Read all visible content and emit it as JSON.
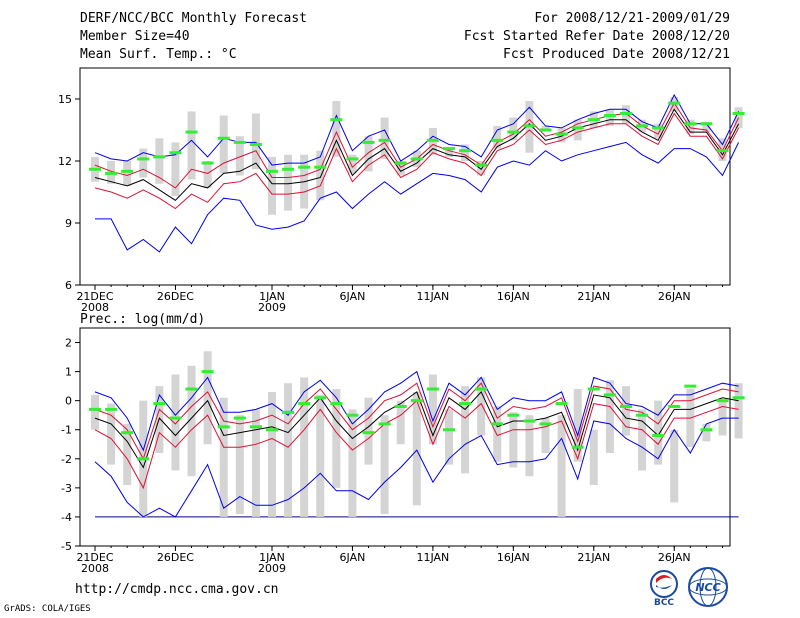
{
  "header": {
    "title": "DERF/NCC/BCC Monthly Forecast",
    "member": "Member Size=40",
    "variable": "Mean Surf. Temp.: °C",
    "period": "For 2008/12/21-2009/01/29",
    "started": "Fcst Started Refer Date 2008/12/20",
    "produced": "Fcst Produced Date 2008/12/21"
  },
  "footer": {
    "url": "http://cmdp.ncc.cma.gov.cn",
    "credit": "GrADS: COLA/IGES",
    "logo_bcc": "BCC",
    "logo_ncc": "NCC"
  },
  "colors": {
    "envelope": "#0000ee",
    "spread": "#dd1133",
    "mean": "#000000",
    "bar": "#d4d4d4",
    "median": "#33ee33",
    "floor": "#000088"
  },
  "chart_data": [
    {
      "type": "line",
      "title": "Mean Surf. Temp.: °C",
      "xlabel": "",
      "ylabel": "",
      "ylim": [
        6,
        16.5
      ],
      "yticks": [
        6,
        9,
        12,
        15
      ],
      "days": 40,
      "xticks": [
        {
          "day": 0,
          "label": "21DEC",
          "sub": "2008"
        },
        {
          "day": 5,
          "label": "26DEC",
          "sub": ""
        },
        {
          "day": 11,
          "label": "1JAN",
          "sub": "2009"
        },
        {
          "day": 16,
          "label": "6JAN",
          "sub": ""
        },
        {
          "day": 21,
          "label": "11JAN",
          "sub": ""
        },
        {
          "day": 26,
          "label": "16JAN",
          "sub": ""
        },
        {
          "day": 31,
          "label": "21JAN",
          "sub": ""
        },
        {
          "day": 36,
          "label": "26JAN",
          "sub": ""
        }
      ],
      "bar_low": [
        11.0,
        10.9,
        10.8,
        11.2,
        10.9,
        10.3,
        11.1,
        10.7,
        11.4,
        11.3,
        11.6,
        9.4,
        9.6,
        9.7,
        10.1,
        12.2,
        11.4,
        11.5,
        12.1,
        11.3,
        11.7,
        12.3,
        12.2,
        12.0,
        11.3,
        12.6,
        13.0,
        12.4,
        13.5,
        12.9,
        13.0,
        13.6,
        13.7,
        13.8,
        13.4,
        13.1,
        14.4,
        13.3,
        13.4,
        12.0,
        13.6
      ],
      "bar_high": [
        12.2,
        12.0,
        12.0,
        12.6,
        13.1,
        12.9,
        14.4,
        12.0,
        14.2,
        13.2,
        14.3,
        12.2,
        12.3,
        12.3,
        12.5,
        14.9,
        12.3,
        13.2,
        14.1,
        12.0,
        12.5,
        13.6,
        12.6,
        12.8,
        12.0,
        13.7,
        14.1,
        14.9,
        13.7,
        13.6,
        14.0,
        14.4,
        14.5,
        14.7,
        14.0,
        13.8,
        15.1,
        14.0,
        13.9,
        13.1,
        14.6
      ],
      "median": [
        11.6,
        11.4,
        11.5,
        12.1,
        12.2,
        12.4,
        13.4,
        11.9,
        13.1,
        12.9,
        12.8,
        11.5,
        11.6,
        11.7,
        11.7,
        14.0,
        12.1,
        12.9,
        13.0,
        11.9,
        12.1,
        13.0,
        12.6,
        12.5,
        11.8,
        13.0,
        13.4,
        13.7,
        13.5,
        13.3,
        13.6,
        14.0,
        14.2,
        14.3,
        13.7,
        13.6,
        14.8,
        13.8,
        13.8,
        12.5,
        14.3
      ],
      "series": [
        {
          "name": "max",
          "role": "envelope",
          "values": [
            12.4,
            12.1,
            12.0,
            12.4,
            12.2,
            12.3,
            13.0,
            12.2,
            13.1,
            12.9,
            12.9,
            11.8,
            11.9,
            11.9,
            12.2,
            14.2,
            12.5,
            13.2,
            13.5,
            12.0,
            12.5,
            13.2,
            12.8,
            12.7,
            12.2,
            13.5,
            13.8,
            14.6,
            13.7,
            13.6,
            14.0,
            14.3,
            14.5,
            14.5,
            13.9,
            13.6,
            15.2,
            13.8,
            13.8,
            12.8,
            14.4
          ]
        },
        {
          "name": "upper",
          "role": "spread",
          "values": [
            11.8,
            11.5,
            11.3,
            11.6,
            11.2,
            10.7,
            11.6,
            11.4,
            11.9,
            12.2,
            12.5,
            11.2,
            11.2,
            11.3,
            11.6,
            13.4,
            11.7,
            12.4,
            12.9,
            11.7,
            12.1,
            12.8,
            12.5,
            12.3,
            11.8,
            12.9,
            13.3,
            14.0,
            13.2,
            13.4,
            13.8,
            14.0,
            14.2,
            14.3,
            13.7,
            13.3,
            14.8,
            13.6,
            13.5,
            12.5,
            14.1
          ]
        },
        {
          "name": "mean",
          "role": "mean",
          "values": [
            11.2,
            11.0,
            10.8,
            11.1,
            10.6,
            10.1,
            10.9,
            10.7,
            11.4,
            11.5,
            11.9,
            10.9,
            10.9,
            11.0,
            11.2,
            13.0,
            11.3,
            12.1,
            12.6,
            11.5,
            11.9,
            12.6,
            12.3,
            12.2,
            11.6,
            12.7,
            13.1,
            13.8,
            13.0,
            13.2,
            13.6,
            13.8,
            14.0,
            14.0,
            13.4,
            13.0,
            14.5,
            13.4,
            13.4,
            12.3,
            13.8
          ]
        },
        {
          "name": "lower",
          "role": "spread",
          "values": [
            10.7,
            10.5,
            10.2,
            10.6,
            10.2,
            9.7,
            10.4,
            10.0,
            10.9,
            11.0,
            11.4,
            10.4,
            10.4,
            10.5,
            10.8,
            12.6,
            11.0,
            11.8,
            12.3,
            11.2,
            11.6,
            12.4,
            12.1,
            11.9,
            11.3,
            12.5,
            12.8,
            13.5,
            12.8,
            13.0,
            13.4,
            13.6,
            13.8,
            13.8,
            13.2,
            12.8,
            14.3,
            13.2,
            13.2,
            12.1,
            13.6
          ]
        },
        {
          "name": "min",
          "role": "envelope",
          "values": [
            9.2,
            9.2,
            7.7,
            8.2,
            7.6,
            8.8,
            8.0,
            9.4,
            10.2,
            10.1,
            8.9,
            8.7,
            8.8,
            9.1,
            10.2,
            10.5,
            9.7,
            10.4,
            11.0,
            10.4,
            10.9,
            11.4,
            11.3,
            11.1,
            10.5,
            11.7,
            12.0,
            11.8,
            12.5,
            12.0,
            12.3,
            12.5,
            12.7,
            12.9,
            12.3,
            11.9,
            12.6,
            12.6,
            12.2,
            11.3,
            12.9
          ]
        }
      ]
    },
    {
      "type": "line",
      "title": "Prec.: log(mm/d)",
      "xlabel": "",
      "ylabel": "",
      "ylim": [
        -5,
        2.5
      ],
      "yticks": [
        -5,
        -4,
        -3,
        -2,
        -1,
        0,
        1,
        2
      ],
      "days": 40,
      "xticks": [
        {
          "day": 0,
          "label": "21DEC",
          "sub": "2008"
        },
        {
          "day": 5,
          "label": "26DEC",
          "sub": ""
        },
        {
          "day": 11,
          "label": "1JAN",
          "sub": "2009"
        },
        {
          "day": 16,
          "label": "6JAN",
          "sub": ""
        },
        {
          "day": 21,
          "label": "11JAN",
          "sub": ""
        },
        {
          "day": 26,
          "label": "16JAN",
          "sub": ""
        },
        {
          "day": 31,
          "label": "21JAN",
          "sub": ""
        },
        {
          "day": 36,
          "label": "26JAN",
          "sub": ""
        }
      ],
      "floor_value": -4,
      "bar_low": [
        -1.0,
        -2.2,
        -2.9,
        -4.0,
        -1.8,
        -2.4,
        -2.6,
        -1.5,
        -4.0,
        -3.9,
        -4.0,
        -4.0,
        -4.0,
        -4.0,
        -4.0,
        -3.0,
        -4.0,
        -2.2,
        -3.9,
        -1.5,
        -3.6,
        -1.5,
        -2.2,
        -2.5,
        -1.2,
        -2.1,
        -2.3,
        -2.6,
        -1.8,
        -4.0,
        -2.1,
        -2.9,
        -1.8,
        -1.2,
        -2.4,
        -2.2,
        -3.5,
        -1.6,
        -1.4,
        -1.2,
        -1.3
      ],
      "bar_high": [
        0.2,
        -0.1,
        -0.8,
        0.0,
        0.5,
        0.9,
        1.2,
        1.7,
        0.1,
        -0.5,
        -0.3,
        0.3,
        0.6,
        0.8,
        0.2,
        0.4,
        -0.3,
        0.1,
        -0.5,
        0.0,
        0.3,
        0.9,
        -0.3,
        0.5,
        0.8,
        -0.2,
        -0.4,
        -0.5,
        -0.6,
        -0.5,
        0.4,
        -1.0,
        0.7,
        0.5,
        -0.3,
        0.0,
        -1.0,
        0.4,
        -0.8,
        0.0,
        0.6
      ],
      "median": [
        -0.3,
        -0.3,
        -1.1,
        -2.0,
        -0.1,
        -0.6,
        0.4,
        1.0,
        -0.9,
        -0.6,
        -0.9,
        -1.0,
        -0.4,
        -0.1,
        0.1,
        -0.1,
        -0.5,
        -1.1,
        -0.8,
        -0.2,
        0.0,
        0.4,
        -1.0,
        -0.1,
        0.4,
        -0.8,
        -0.5,
        -0.7,
        -0.8,
        -0.1,
        -1.6,
        0.4,
        0.2,
        -0.2,
        -0.5,
        -1.2,
        -0.2,
        0.5,
        -1.0,
        0.0,
        0.1
      ],
      "series": [
        {
          "name": "max",
          "role": "envelope",
          "values": [
            0.3,
            0.1,
            -0.6,
            -1.7,
            0.2,
            -0.5,
            0.1,
            0.8,
            -0.4,
            -0.4,
            -0.3,
            -0.1,
            -0.5,
            0.3,
            0.7,
            0.1,
            -0.8,
            -0.3,
            0.3,
            0.6,
            1.0,
            -0.7,
            0.6,
            0.2,
            0.8,
            -0.3,
            0.1,
            0.0,
            0.0,
            0.3,
            -1.2,
            0.8,
            0.6,
            -0.1,
            -0.2,
            -0.5,
            0.2,
            0.2,
            0.4,
            0.6,
            0.5
          ]
        },
        {
          "name": "upper",
          "role": "spread",
          "values": [
            -0.3,
            -0.5,
            -1.0,
            -2.0,
            -0.3,
            -0.8,
            -0.2,
            0.3,
            -0.7,
            -0.8,
            -0.7,
            -0.5,
            -0.8,
            -0.1,
            0.4,
            -0.3,
            -1.0,
            -0.6,
            0.0,
            0.2,
            0.6,
            -0.9,
            0.4,
            0.0,
            0.6,
            -0.6,
            -0.2,
            -0.3,
            -0.2,
            0.1,
            -1.4,
            0.5,
            0.4,
            -0.3,
            -0.4,
            -0.8,
            0.0,
            0.0,
            0.2,
            0.4,
            0.3
          ]
        },
        {
          "name": "mean",
          "role": "mean",
          "values": [
            -0.6,
            -0.8,
            -1.4,
            -2.3,
            -0.6,
            -1.2,
            -0.6,
            0.0,
            -1.2,
            -1.1,
            -1.0,
            -0.9,
            -1.1,
            -0.5,
            0.1,
            -0.7,
            -1.3,
            -0.9,
            -0.4,
            -0.1,
            0.3,
            -1.2,
            0.1,
            -0.3,
            0.3,
            -0.9,
            -0.7,
            -0.7,
            -0.6,
            -0.4,
            -1.7,
            0.2,
            0.1,
            -0.6,
            -0.7,
            -1.2,
            -0.3,
            -0.3,
            -0.1,
            0.1,
            0.0
          ]
        },
        {
          "name": "lower",
          "role": "spread",
          "values": [
            -1.0,
            -1.3,
            -2.0,
            -3.0,
            -1.1,
            -1.6,
            -1.0,
            -0.5,
            -1.6,
            -1.6,
            -1.5,
            -1.3,
            -1.6,
            -1.0,
            -0.3,
            -1.1,
            -1.7,
            -1.3,
            -0.8,
            -0.5,
            0.0,
            -1.5,
            -0.2,
            -0.6,
            -0.1,
            -1.2,
            -1.0,
            -1.0,
            -0.9,
            -0.7,
            -2.0,
            -0.1,
            -0.2,
            -0.9,
            -1.0,
            -1.5,
            -0.6,
            -0.6,
            -0.4,
            -0.2,
            -0.3
          ]
        },
        {
          "name": "min",
          "role": "envelope",
          "values": [
            -2.1,
            -2.6,
            -3.5,
            -4.0,
            -3.7,
            -4.0,
            -3.1,
            -2.2,
            -3.7,
            -3.3,
            -3.6,
            -3.6,
            -3.4,
            -3.0,
            -2.5,
            -3.1,
            -3.1,
            -3.4,
            -2.8,
            -2.3,
            -1.7,
            -2.8,
            -2.0,
            -1.5,
            -1.2,
            -2.2,
            -2.1,
            -2.1,
            -2.0,
            -1.3,
            -2.7,
            -0.7,
            -0.8,
            -1.3,
            -1.6,
            -2.0,
            -1.0,
            -1.8,
            -0.8,
            -0.6,
            -0.6
          ]
        }
      ]
    }
  ]
}
